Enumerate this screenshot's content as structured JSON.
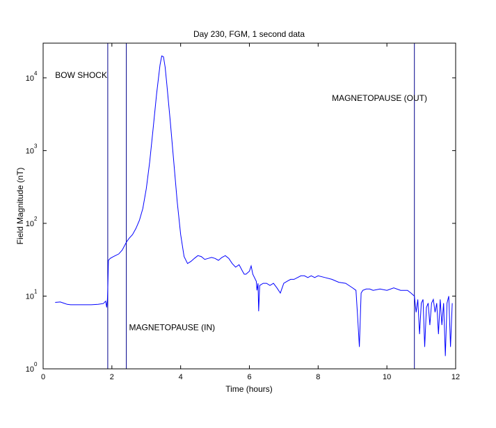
{
  "chart_data": {
    "type": "line",
    "title": "Day 230, FGM, 1 second data",
    "xlabel": "Time (hours)",
    "ylabel": "Field Magnitude (nT)",
    "xlim": [
      0,
      12
    ],
    "ylim": [
      1,
      30000
    ],
    "yscale": "log",
    "grid": false,
    "series_color": "#0000ff",
    "x_ticks": [
      0,
      2,
      4,
      6,
      8,
      10,
      12
    ],
    "x_tick_labels": [
      "0",
      "2",
      "4",
      "6",
      "8",
      "10",
      "12"
    ],
    "y_ticks": [
      1,
      10,
      100,
      1000,
      10000
    ],
    "y_tick_labels": [
      "10",
      "10",
      "10",
      "10",
      "10"
    ],
    "y_tick_exponents": [
      "0",
      "1",
      "2",
      "3",
      "4"
    ],
    "vlines": [
      1.88,
      2.42,
      10.8
    ],
    "annotations": [
      {
        "text": "BOW SHOCK",
        "x": 0.35,
        "y": 10000
      },
      {
        "text": "MAGNETOPAUSE (IN)",
        "x": 2.5,
        "y": 3.4
      },
      {
        "text": "MAGNETOPAUSE (OUT)",
        "x": 8.4,
        "y": 4800
      }
    ],
    "series": [
      {
        "x": [
          0.35,
          0.5,
          0.6,
          0.7,
          0.8,
          1.0,
          1.2,
          1.4,
          1.6,
          1.75,
          1.82,
          1.85,
          1.87,
          1.88,
          1.9,
          1.95,
          2.0,
          2.05,
          2.1,
          2.2,
          2.3,
          2.42,
          2.5,
          2.6,
          2.7,
          2.8,
          2.9,
          3.0,
          3.1,
          3.2,
          3.3,
          3.4,
          3.45,
          3.5,
          3.55,
          3.6,
          3.7,
          3.8,
          3.9,
          4.0,
          4.1,
          4.2,
          4.3,
          4.4,
          4.5,
          4.6,
          4.7,
          4.8,
          4.9,
          5.0,
          5.1,
          5.2,
          5.3,
          5.4,
          5.5,
          5.6,
          5.7,
          5.8,
          5.85,
          5.9,
          6.0,
          6.05,
          6.1,
          6.2,
          6.22,
          6.25,
          6.27,
          6.3,
          6.4,
          6.5,
          6.6,
          6.7,
          6.8,
          6.9,
          7.0,
          7.1,
          7.2,
          7.3,
          7.4,
          7.5,
          7.6,
          7.7,
          7.8,
          7.9,
          8.0,
          8.2,
          8.4,
          8.6,
          8.8,
          9.0,
          9.1,
          9.15,
          9.2,
          9.25,
          9.3,
          9.4,
          9.5,
          9.6,
          9.8,
          10.0,
          10.2,
          10.4,
          10.6,
          10.7,
          10.8,
          10.85,
          10.9,
          10.95,
          11.0,
          11.05,
          11.1,
          11.15,
          11.2,
          11.25,
          11.3,
          11.35,
          11.4,
          11.45,
          11.5,
          11.55,
          11.6,
          11.65,
          11.7,
          11.75,
          11.8,
          11.85,
          11.9
        ],
        "y": [
          8.2,
          8.3,
          8.0,
          7.7,
          7.6,
          7.6,
          7.6,
          7.6,
          7.7,
          7.9,
          8.5,
          7.0,
          9.0,
          12.0,
          31.0,
          33.0,
          34.0,
          35.0,
          36.0,
          38.0,
          43.0,
          55.0,
          62.0,
          70.0,
          85.0,
          110.0,
          160.0,
          300.0,
          700.0,
          2000.0,
          6000.0,
          15000.0,
          20000.0,
          19500.0,
          14000.0,
          8000.0,
          2500.0,
          700.0,
          200.0,
          70.0,
          35.0,
          28.0,
          30.0,
          33.0,
          36.0,
          35.0,
          32.0,
          33.0,
          34.0,
          33.0,
          31.0,
          34.0,
          36.0,
          33.0,
          28.0,
          25.0,
          27.0,
          22.0,
          20.0,
          20.0,
          22.0,
          26.0,
          20.0,
          16.0,
          12.0,
          15.0,
          6.2,
          14.0,
          15.0,
          15.0,
          14.0,
          15.0,
          13.0,
          11.0,
          15.0,
          16.0,
          17.0,
          17.0,
          18.0,
          19.0,
          19.0,
          18.0,
          19.0,
          18.0,
          19.0,
          18.0,
          17.0,
          15.5,
          15.0,
          13.0,
          12.0,
          5.0,
          2.0,
          11.0,
          12.0,
          12.5,
          12.5,
          12.0,
          12.5,
          12.0,
          13.0,
          12.0,
          12.0,
          11.0,
          10.0,
          6.0,
          9.0,
          3.0,
          8.0,
          9.0,
          2.0,
          7.0,
          8.0,
          4.0,
          8.0,
          9.0,
          6.0,
          8.0,
          3.0,
          9.0,
          4.0,
          8.0,
          1.5,
          8.0,
          10.0,
          2.0,
          8.0
        ]
      }
    ]
  }
}
